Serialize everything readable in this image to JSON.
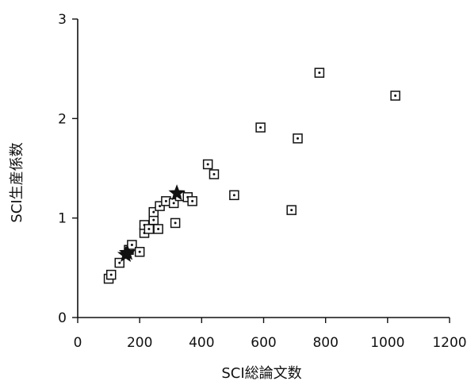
{
  "chart_data": {
    "type": "scatter",
    "xlabel": "SCI総論文数",
    "ylabel": "SCI生産係数",
    "xlim": [
      0,
      1200
    ],
    "ylim": [
      0,
      3
    ],
    "xticks": [
      0,
      200,
      400,
      600,
      800,
      1000,
      1200
    ],
    "yticks": [
      0,
      1,
      2,
      3
    ],
    "grid": false,
    "marker_color": "#111111",
    "series": [
      {
        "marker": "square-dot",
        "points": [
          [
            100,
            0.39
          ],
          [
            108,
            0.43
          ],
          [
            135,
            0.55
          ],
          [
            165,
            0.68
          ],
          [
            175,
            0.73
          ],
          [
            200,
            0.66
          ],
          [
            215,
            0.85
          ],
          [
            215,
            0.93
          ],
          [
            230,
            0.89
          ],
          [
            245,
            0.98
          ],
          [
            245,
            1.06
          ],
          [
            260,
            0.89
          ],
          [
            265,
            1.12
          ],
          [
            285,
            1.17
          ],
          [
            310,
            1.15
          ],
          [
            315,
            0.95
          ],
          [
            330,
            1.22
          ],
          [
            355,
            1.21
          ],
          [
            370,
            1.17
          ],
          [
            420,
            1.54
          ],
          [
            440,
            1.44
          ],
          [
            505,
            1.23
          ],
          [
            590,
            1.91
          ],
          [
            690,
            1.08
          ],
          [
            710,
            1.8
          ],
          [
            780,
            2.46
          ],
          [
            1025,
            2.23
          ]
        ]
      },
      {
        "marker": "star",
        "points": [
          [
            155,
            0.63
          ],
          [
            160,
            0.65
          ],
          [
            320,
            1.25
          ]
        ]
      }
    ]
  }
}
